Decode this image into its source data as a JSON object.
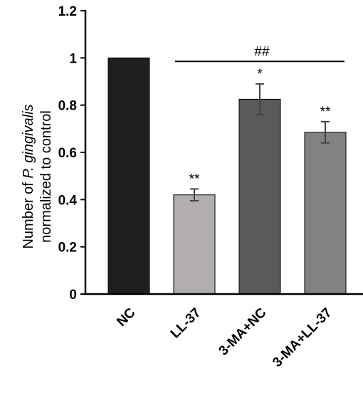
{
  "chart_data": {
    "type": "bar",
    "categories": [
      "NC",
      "LL-37",
      "3-MA+NC",
      "3-MA+LL-37"
    ],
    "values": [
      1.0,
      0.42,
      0.825,
      0.685
    ],
    "errors": [
      0,
      0.025,
      0.065,
      0.045
    ],
    "bar_colors": [
      "#1e1e1e",
      "#b2aeae",
      "#5a5a5a",
      "#828282"
    ],
    "significance": [
      "",
      "**",
      "*",
      "**"
    ],
    "bracket": {
      "from": "LL-37",
      "to": "3-MA+LL-37",
      "label": "##",
      "y": 0.985
    },
    "ylabel_line1_prefix": "Number of ",
    "ylabel_line1_italic": "P. gingivalis",
    "ylabel_line2": "normalized to control",
    "xlabel": "",
    "ylim": [
      0,
      1.2
    ],
    "yticks": [
      0,
      0.2,
      0.4,
      0.6,
      0.8,
      1,
      1.2
    ],
    "ytick_labels": [
      "0",
      "0.2",
      "0.4",
      "0.6",
      "0.8",
      "1",
      "1.2"
    ],
    "grid": false,
    "legend": "none"
  }
}
